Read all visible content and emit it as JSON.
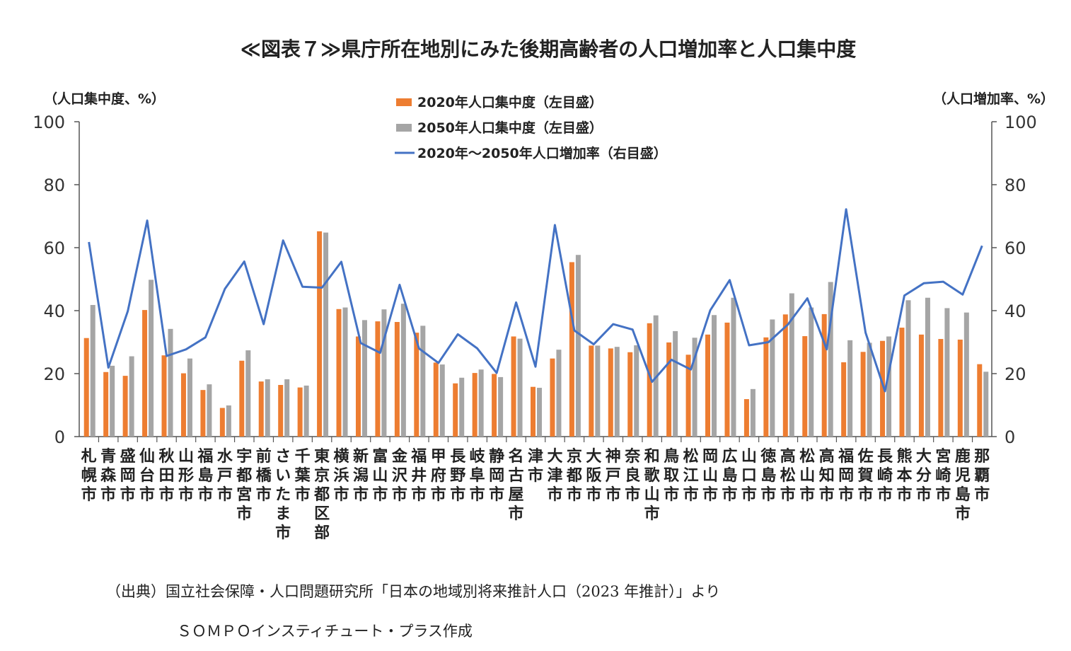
{
  "chart_data": {
    "type": "bar",
    "title": "≪図表７≫県庁所在地別にみた後期高齢者の人口増加率と人口集中度",
    "left_axis_label": "（人口集中度、%）",
    "right_axis_label": "（人口増加率、%）",
    "ylim_left": [
      0,
      100
    ],
    "ylim_right": [
      0,
      100
    ],
    "ticks": [
      "0",
      "20",
      "40",
      "60",
      "80",
      "100"
    ],
    "legend_position": "top-center",
    "categories": [
      "札幌市",
      "青森市",
      "盛岡市",
      "仙台市",
      "秋田市",
      "山形市",
      "福島市",
      "水戸市",
      "宇都宮市",
      "前橋市",
      "さいたま市",
      "千葉市",
      "東京都区部",
      "横浜市",
      "新潟市",
      "富山市",
      "金沢市",
      "福井市",
      "甲府市",
      "長野市",
      "岐阜市",
      "静岡市",
      "名古屋市",
      "津市",
      "大津市",
      "京都市",
      "大阪市",
      "神戸市",
      "奈良市",
      "和歌山市",
      "鳥取市",
      "松江市",
      "岡山市",
      "広島市",
      "山口市",
      "徳島市",
      "高松市",
      "松山市",
      "高知市",
      "福岡市",
      "佐賀市",
      "長崎市",
      "熊本市",
      "大分市",
      "宮崎市",
      "鹿児島市",
      "那覇市"
    ],
    "series": [
      {
        "name": "2020年人口集中度（左目盛）",
        "kind": "bar",
        "axis": "left",
        "color": "#ED7D31",
        "values": [
          31.3,
          20.5,
          19.3,
          40.2,
          25.8,
          20.1,
          14.8,
          9.1,
          24.1,
          17.5,
          16.4,
          15.6,
          65.2,
          40.5,
          31.8,
          36.6,
          36.4,
          33.0,
          23.5,
          16.9,
          20.2,
          19.9,
          31.8,
          15.8,
          24.8,
          55.4,
          28.9,
          28.0,
          26.8,
          36.0,
          29.9,
          26.0,
          32.4,
          36.2,
          11.9,
          31.5,
          38.8,
          31.9,
          38.9,
          23.6,
          26.9,
          30.4,
          34.6,
          32.4,
          31.0,
          30.8,
          23.0
        ]
      },
      {
        "name": "2050年人口集中度（左目盛）",
        "kind": "bar",
        "axis": "left",
        "color": "#A5A5A5",
        "values": [
          41.8,
          22.5,
          25.5,
          49.8,
          34.2,
          24.8,
          16.6,
          9.9,
          27.4,
          18.2,
          18.2,
          16.2,
          64.8,
          41.0,
          37.0,
          40.4,
          42.2,
          35.2,
          22.9,
          18.7,
          21.3,
          18.9,
          31.1,
          15.5,
          27.6,
          57.7,
          28.9,
          28.5,
          29.0,
          38.5,
          33.5,
          31.4,
          38.6,
          44.1,
          15.1,
          37.2,
          45.5,
          41.0,
          49.1,
          30.6,
          29.8,
          31.8,
          43.3,
          44.1,
          40.8,
          39.4,
          20.6
        ]
      },
      {
        "name": "2020年～2050年人口増加率（右目盛）",
        "kind": "line",
        "axis": "right",
        "color": "#4472C4",
        "values": [
          61.8,
          21.9,
          39.8,
          68.6,
          25.6,
          27.7,
          31.5,
          46.9,
          55.6,
          35.7,
          62.3,
          47.6,
          47.3,
          55.5,
          29.7,
          26.6,
          48.2,
          28.0,
          23.4,
          32.5,
          28.0,
          20.2,
          42.6,
          22.2,
          67.2,
          33.7,
          29.3,
          35.7,
          34.0,
          17.4,
          24.4,
          21.3,
          40.1,
          49.7,
          29.0,
          30.0,
          35.6,
          43.9,
          27.7,
          72.2,
          33.0,
          14.4,
          44.8,
          48.7,
          49.2,
          45.1,
          60.6
        ]
      }
    ]
  },
  "footer": {
    "source": "（出典）国立社会保障・人口問題研究所「日本の地域別将来推計人口（2023 年推計）」より",
    "credit": "ＳＯＭＰＯインスティチュート・プラス作成"
  }
}
